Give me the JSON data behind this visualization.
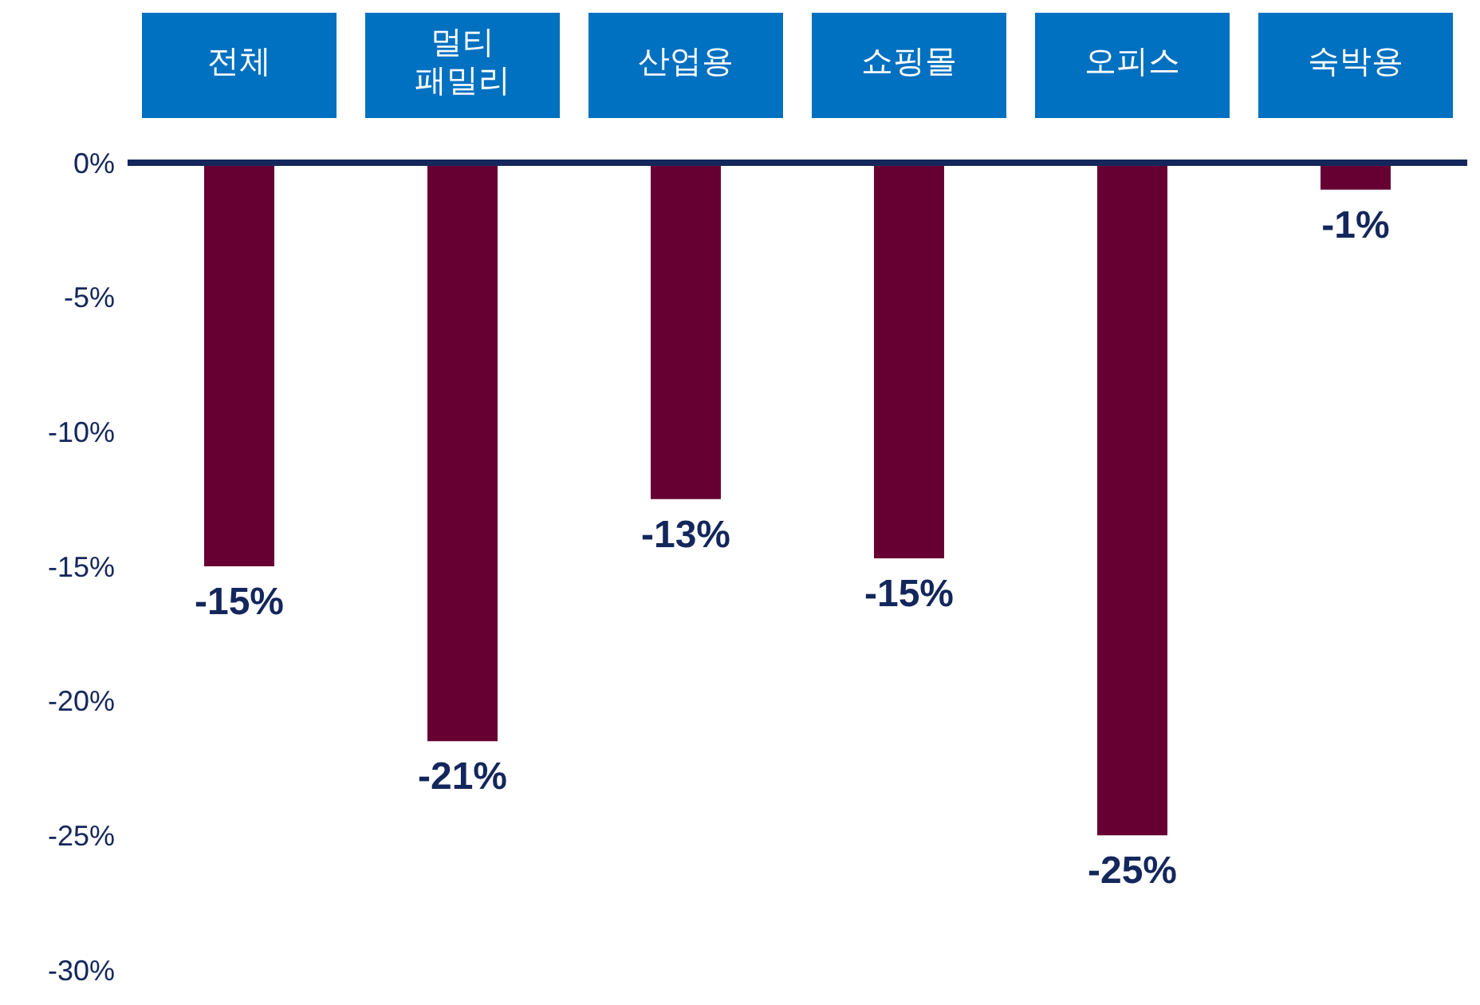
{
  "chart_data": {
    "type": "bar",
    "categories": [
      "전체",
      "멀티 패밀리",
      "산업용",
      "쇼핑몰",
      "오피스",
      "숙박용"
    ],
    "values": [
      -15,
      -21.5,
      -12.5,
      -14.7,
      -25,
      -1
    ],
    "value_labels": [
      "-15%",
      "-21%",
      "-13%",
      "-15%",
      "-25%",
      "-1%"
    ],
    "color": "#660033",
    "ylim": [
      -30,
      0
    ],
    "yticks": [
      {
        "value": 0,
        "label": "0%"
      },
      {
        "value": -5,
        "label": "-5%"
      },
      {
        "value": -10,
        "label": "-10%"
      },
      {
        "value": -15,
        "label": "-15%"
      },
      {
        "value": -20,
        "label": "-20%"
      },
      {
        "value": -25,
        "label": "-25%"
      },
      {
        "value": -30,
        "label": "-30%"
      }
    ],
    "grid": false,
    "legend": false
  }
}
